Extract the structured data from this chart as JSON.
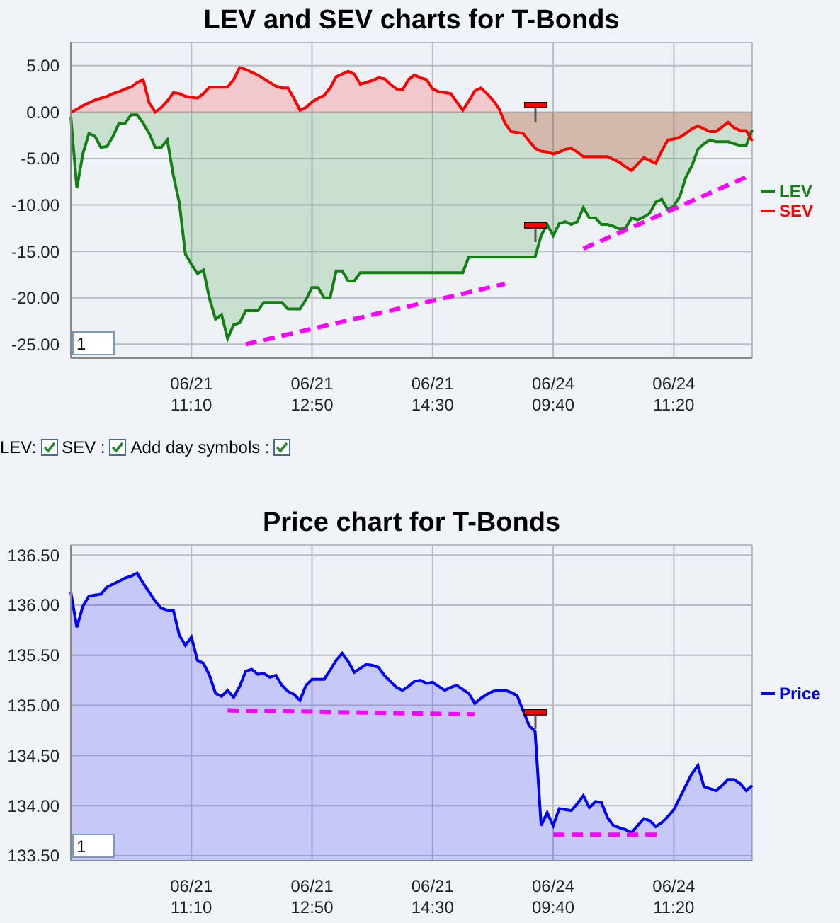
{
  "chart_data": [
    {
      "type": "area",
      "title": "LEV and SEV charts for T-Bonds",
      "categories": [
        null,
        null,
        null,
        null,
        null,
        null,
        null,
        null,
        null,
        null,
        null,
        null,
        null,
        null,
        null,
        null,
        null,
        null,
        null,
        null,
        "06/21 11:10",
        null,
        null,
        null,
        null,
        null,
        null,
        null,
        null,
        null,
        null,
        null,
        null,
        null,
        null,
        null,
        null,
        null,
        null,
        null,
        "06/21 12:50",
        null,
        null,
        null,
        null,
        null,
        null,
        null,
        null,
        null,
        null,
        null,
        null,
        null,
        null,
        null,
        null,
        null,
        null,
        null,
        "06/21 14:30",
        null,
        null,
        null,
        null,
        null,
        null,
        null,
        null,
        null,
        null,
        null,
        null,
        null,
        null,
        null,
        null,
        null,
        null,
        null,
        "06/24 09:40",
        null,
        null,
        null,
        null,
        null,
        null,
        null,
        null,
        null,
        null,
        null,
        null,
        null,
        null,
        null,
        null,
        null,
        null,
        null,
        "06/24 11:20",
        null,
        null,
        null,
        null,
        null,
        null,
        null,
        null,
        null,
        null,
        null,
        null,
        null
      ],
      "ylim": [
        -26.5,
        7.5
      ],
      "yticks": [
        {
          "value": -25,
          "label": "-25.00"
        },
        {
          "value": -20,
          "label": "-20.00"
        },
        {
          "value": -15,
          "label": "-15.00"
        },
        {
          "value": -10,
          "label": "-10.00"
        },
        {
          "value": -5,
          "label": "-5.00"
        },
        {
          "value": 0,
          "label": "0.00"
        },
        {
          "value": 5,
          "label": "5.00"
        }
      ],
      "grid": true,
      "legend": "right",
      "annotations": [
        "1",
        "LEV:",
        "SEV :",
        "Add day symbols :"
      ],
      "series": [
        {
          "name": "LEV",
          "color": "#138013",
          "values": [
            -0.5,
            -8.2,
            -4.5,
            -2.3,
            -2.6,
            -3.8,
            -3.7,
            -2.6,
            -1.2,
            -1.2,
            -0.3,
            -0.3,
            -1.2,
            -2.3,
            -3.8,
            -3.8,
            -3.0,
            -6.8,
            -9.8,
            -15.3,
            -16.4,
            -17.4,
            -17.0,
            -20.1,
            -22.3,
            -21.8,
            -24.4,
            -22.9,
            -22.7,
            -21.4,
            -21.4,
            -21.4,
            -20.5,
            -20.5,
            -20.5,
            -20.5,
            -21.2,
            -21.2,
            -21.2,
            -20.2,
            -18.9,
            -18.9,
            -20.0,
            -20.0,
            -17.1,
            -17.1,
            -18.2,
            -18.2,
            -17.3,
            -17.3,
            -17.3,
            -17.3,
            -17.3,
            -17.3,
            -17.3,
            -17.3,
            -17.3,
            -17.3,
            -17.3,
            -17.3,
            -17.3,
            -17.3,
            -17.3,
            -17.3,
            -17.3,
            -17.3,
            -15.6,
            -15.6,
            -15.6,
            -15.6,
            -15.6,
            -15.6,
            -15.6,
            -15.6,
            -15.6,
            -15.6,
            -15.6,
            -15.6,
            -13.3,
            -12.1,
            -13.3,
            -12.0,
            -11.8,
            -12.1,
            -11.8,
            -10.3,
            -11.4,
            -11.4,
            -12.1,
            -12.1,
            -12.3,
            -12.6,
            -12.5,
            -11.4,
            -11.6,
            -11.3,
            -10.9,
            -9.7,
            -9.4,
            -10.5,
            -10.1,
            -9.1,
            -7.0,
            -5.8,
            -4.0,
            -3.4,
            -3.0,
            -3.2,
            -3.2,
            -3.2,
            -3.4,
            -3.6,
            -3.6,
            -1.9
          ]
        },
        {
          "name": "SEV",
          "color": "#ff0000",
          "values": [
            0,
            0.3,
            0.7,
            1.0,
            1.3,
            1.5,
            1.7,
            2.0,
            2.2,
            2.5,
            2.7,
            3.2,
            3.5,
            1.0,
            0,
            0.5,
            1.2,
            2.1,
            2.0,
            1.7,
            1.6,
            1.5,
            2.0,
            2.7,
            2.7,
            2.7,
            2.7,
            3.5,
            4.8,
            4.6,
            4.3,
            4.0,
            3.6,
            3.2,
            2.8,
            2.6,
            2.6,
            1.5,
            0.2,
            0.5,
            1.1,
            1.5,
            1.8,
            2.6,
            3.8,
            4.1,
            4.4,
            4.1,
            3.0,
            3.2,
            3.4,
            3.7,
            3.6,
            3.0,
            2.5,
            2.4,
            3.5,
            4.0,
            3.7,
            3.5,
            2.5,
            2.2,
            2.1,
            2.0,
            1.1,
            0.2,
            1.2,
            2.3,
            2.6,
            2.0,
            1.3,
            0.4,
            -1.2,
            -2.1,
            -2.2,
            -2.3,
            -3.1,
            -3.9,
            -4.2,
            -4.3,
            -4.5,
            -4.3,
            -4.0,
            -3.9,
            -4.3,
            -4.8,
            -4.8,
            -4.8,
            -4.8,
            -4.8,
            -5.1,
            -5.4,
            -5.9,
            -6.3,
            -5.6,
            -4.9,
            -5.2,
            -5.5,
            -4.2,
            -3.0,
            -2.9,
            -2.7,
            -2.3,
            -1.8,
            -1.5,
            -1.8,
            -2.1,
            -2.1,
            -1.6,
            -1.1,
            -1.7,
            -2.0,
            -2.0,
            -3.1
          ]
        },
        {
          "type": "line",
          "color": "#ff00ff",
          "line_style": "dashed",
          "values": [
            null,
            null,
            null,
            null,
            null,
            null,
            null,
            null,
            null,
            null,
            null,
            null,
            null,
            null,
            null,
            null,
            null,
            null,
            null,
            null,
            null,
            null,
            null,
            null,
            null,
            null,
            null,
            null,
            null,
            -25.0,
            null,
            null,
            null,
            null,
            null,
            null,
            null,
            null,
            null,
            null,
            null,
            null,
            null,
            null,
            null,
            null,
            null,
            null,
            null,
            null,
            null,
            null,
            null,
            null,
            null,
            null,
            null,
            null,
            null,
            null,
            null,
            null,
            null,
            null,
            null,
            null,
            null,
            null,
            null,
            null,
            null,
            null,
            -18.5,
            null,
            null,
            null,
            null,
            null,
            null,
            null,
            null,
            null,
            null,
            null,
            null,
            null,
            null,
            null,
            null,
            null,
            null,
            null,
            null,
            null,
            null,
            null,
            null,
            null,
            null,
            null,
            null,
            null,
            null,
            null,
            null,
            null,
            null,
            null,
            null,
            null,
            null,
            null,
            null,
            null
          ]
        },
        {
          "type": "line",
          "color": "#ff00ff",
          "line_style": "dashed",
          "values": [
            null,
            null,
            null,
            null,
            null,
            null,
            null,
            null,
            null,
            null,
            null,
            null,
            null,
            null,
            null,
            null,
            null,
            null,
            null,
            null,
            null,
            null,
            null,
            null,
            null,
            null,
            null,
            null,
            null,
            null,
            null,
            null,
            null,
            null,
            null,
            null,
            null,
            null,
            null,
            null,
            null,
            null,
            null,
            null,
            null,
            null,
            null,
            null,
            null,
            null,
            null,
            null,
            null,
            null,
            null,
            null,
            null,
            null,
            null,
            null,
            null,
            null,
            null,
            null,
            null,
            null,
            null,
            null,
            null,
            null,
            null,
            null,
            null,
            null,
            null,
            null,
            null,
            null,
            null,
            null,
            null,
            null,
            null,
            null,
            null,
            -14.7,
            null,
            null,
            null,
            null,
            null,
            null,
            null,
            null,
            null,
            null,
            null,
            null,
            null,
            null,
            null,
            null,
            null,
            null,
            null,
            null,
            null,
            null,
            null,
            null,
            null,
            null,
            -7.0,
            null
          ]
        }
      ]
    },
    {
      "type": "area",
      "title": "Price chart for T-Bonds",
      "categories": [
        null,
        null,
        null,
        null,
        null,
        null,
        null,
        null,
        null,
        null,
        null,
        null,
        null,
        null,
        null,
        null,
        null,
        null,
        null,
        null,
        "06/21 11:10",
        null,
        null,
        null,
        null,
        null,
        null,
        null,
        null,
        null,
        null,
        null,
        null,
        null,
        null,
        null,
        null,
        null,
        null,
        null,
        "06/21 12:50",
        null,
        null,
        null,
        null,
        null,
        null,
        null,
        null,
        null,
        null,
        null,
        null,
        null,
        null,
        null,
        null,
        null,
        null,
        null,
        "06/21 14:30",
        null,
        null,
        null,
        null,
        null,
        null,
        null,
        null,
        null,
        null,
        null,
        null,
        null,
        null,
        null,
        null,
        null,
        null,
        null,
        "06/24 09:40",
        null,
        null,
        null,
        null,
        null,
        null,
        null,
        null,
        null,
        null,
        null,
        null,
        null,
        null,
        null,
        null,
        null,
        null,
        null,
        "06/24 11:20",
        null,
        null,
        null,
        null,
        null,
        null,
        null,
        null,
        null,
        null,
        null,
        null,
        null
      ],
      "ylim": [
        133.45,
        136.6
      ],
      "yticks": [
        {
          "value": 133.5,
          "label": "133.50"
        },
        {
          "value": 134,
          "label": "134.00"
        },
        {
          "value": 134.5,
          "label": "134.50"
        },
        {
          "value": 135,
          "label": "135.00"
        },
        {
          "value": 135.5,
          "label": "135.50"
        },
        {
          "value": 136,
          "label": "136.00"
        },
        {
          "value": 136.5,
          "label": "136.50"
        }
      ],
      "grid": true,
      "legend": "right",
      "annotations": [
        "1"
      ],
      "series": [
        {
          "name": "Price",
          "color": "#0000ff",
          "values": [
            136.13,
            135.78,
            135.99,
            136.09,
            136.1,
            136.11,
            136.18,
            136.21,
            136.24,
            136.27,
            136.29,
            136.32,
            136.22,
            136.13,
            136.04,
            135.97,
            135.95,
            135.95,
            135.7,
            135.6,
            135.68,
            135.45,
            135.42,
            135.3,
            135.12,
            135.09,
            135.15,
            135.08,
            135.19,
            135.34,
            135.36,
            135.31,
            135.32,
            135.28,
            135.3,
            135.2,
            135.14,
            135.11,
            135.05,
            135.2,
            135.26,
            135.26,
            135.26,
            135.35,
            135.45,
            135.52,
            135.44,
            135.33,
            135.37,
            135.41,
            135.4,
            135.38,
            135.3,
            135.24,
            135.18,
            135.15,
            135.19,
            135.24,
            135.25,
            135.22,
            135.23,
            135.19,
            135.15,
            135.18,
            135.2,
            135.16,
            135.12,
            135.02,
            135.07,
            135.11,
            135.14,
            135.15,
            135.15,
            135.13,
            135.1,
            134.95,
            134.8,
            134.74,
            133.8,
            133.93,
            133.8,
            133.97,
            133.96,
            133.95,
            134.02,
            134.1,
            133.98,
            134.04,
            134.03,
            133.88,
            133.8,
            133.78,
            133.76,
            133.73,
            133.8,
            133.87,
            133.85,
            133.79,
            133.83,
            133.89,
            133.96,
            134.08,
            134.2,
            134.32,
            134.4,
            134.19,
            134.17,
            134.15,
            134.2,
            134.26,
            134.26,
            134.22,
            134.15,
            134.2
          ]
        },
        {
          "type": "line",
          "color": "#ff00ff",
          "line_style": "dashed",
          "values": [
            null,
            null,
            null,
            null,
            null,
            null,
            null,
            null,
            null,
            null,
            null,
            null,
            null,
            null,
            null,
            null,
            null,
            null,
            null,
            null,
            null,
            null,
            null,
            null,
            null,
            null,
            134.95,
            null,
            null,
            null,
            null,
            null,
            null,
            null,
            null,
            null,
            null,
            null,
            null,
            null,
            null,
            null,
            null,
            null,
            null,
            null,
            null,
            null,
            null,
            null,
            null,
            null,
            null,
            null,
            null,
            null,
            null,
            null,
            null,
            null,
            null,
            null,
            null,
            null,
            null,
            null,
            null,
            134.91,
            null,
            null,
            null,
            null,
            null,
            null,
            null,
            null,
            null,
            null,
            null,
            null,
            null,
            null,
            null,
            null,
            null,
            null,
            null,
            null,
            null,
            null,
            null,
            null,
            null,
            null,
            null,
            null,
            null,
            null,
            null,
            null,
            null,
            null,
            null,
            null,
            null,
            null,
            null,
            null,
            null,
            null,
            null,
            null,
            null,
            null
          ]
        },
        {
          "type": "line",
          "color": "#ff00ff",
          "line_style": "dashed",
          "values": [
            null,
            null,
            null,
            null,
            null,
            null,
            null,
            null,
            null,
            null,
            null,
            null,
            null,
            null,
            null,
            null,
            null,
            null,
            null,
            null,
            null,
            null,
            null,
            null,
            null,
            null,
            null,
            null,
            null,
            null,
            null,
            null,
            null,
            null,
            null,
            null,
            null,
            null,
            null,
            null,
            null,
            null,
            null,
            null,
            null,
            null,
            null,
            null,
            null,
            null,
            null,
            null,
            null,
            null,
            null,
            null,
            null,
            null,
            null,
            null,
            null,
            null,
            null,
            null,
            null,
            null,
            null,
            null,
            null,
            null,
            null,
            null,
            null,
            null,
            null,
            null,
            null,
            null,
            null,
            null,
            133.71,
            null,
            null,
            null,
            null,
            null,
            null,
            null,
            null,
            null,
            null,
            null,
            null,
            null,
            null,
            null,
            null,
            null,
            133.71,
            null,
            null,
            null,
            null,
            null,
            null,
            null,
            null,
            null,
            null,
            null,
            null,
            null,
            null,
            null
          ]
        }
      ]
    }
  ]
}
